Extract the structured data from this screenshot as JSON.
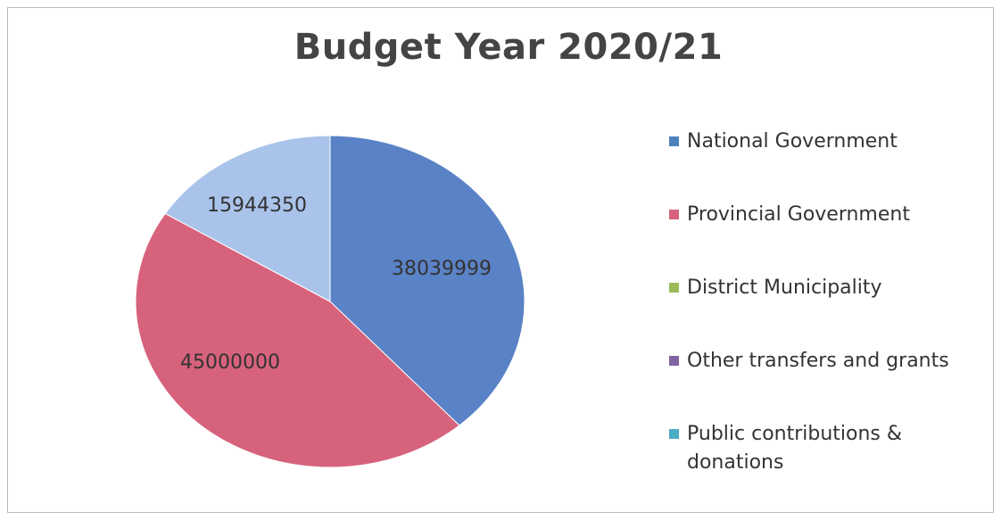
{
  "chart_data": {
    "type": "pie",
    "title": "Budget Year 2020/21",
    "categories": [
      "National Government",
      "Provincial Government",
      "District Municipality",
      "Other transfers and grants",
      "Public contributions & donations"
    ],
    "values": [
      38039999,
      45000000,
      0,
      0,
      15944350
    ],
    "data_labels": [
      "38039999",
      "45000000",
      "",
      "",
      "15944350"
    ],
    "colors": [
      "#4f81bd",
      "#d7627b",
      "#9bbb59",
      "#8064a2",
      "#4bacc6"
    ],
    "slice_colors": [
      "#5a82c6",
      "#d7627b",
      "#9bbb59",
      "#8064a2",
      "#aac3ea"
    ],
    "legend_position": "right",
    "start_angle": "top, clockwise"
  }
}
